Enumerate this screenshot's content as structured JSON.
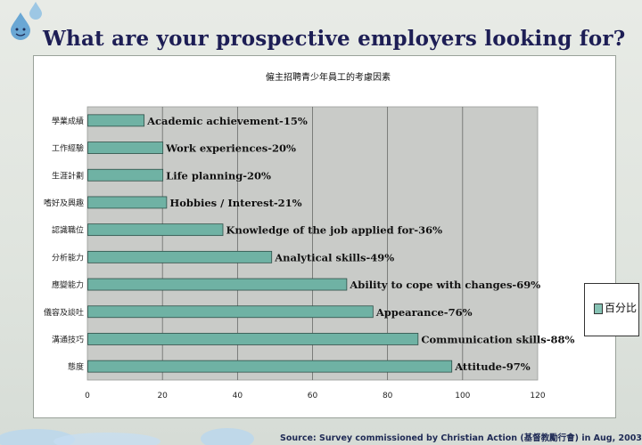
{
  "slide": {
    "title": "What are your prospective employers looking for?",
    "source": "Source: Survey commissioned by Christian Action (基督教勵行會) in Aug, 2003"
  },
  "colors": {
    "title": "#1d1e55",
    "bar_fill": "#6fb2a4",
    "plot_bg": "#c9cbc8",
    "legend_swatch": "#86c2b4"
  },
  "chart_data": {
    "type": "bar",
    "orientation": "horizontal",
    "title": "僱主招聘青少年員工的考慮因素",
    "categories": [
      "學業成績",
      "工作經驗",
      "生涯計劃",
      "嗜好及興趣",
      "認識職位",
      "分析能力",
      "應變能力",
      "儀容及談吐",
      "溝通技巧",
      "態度"
    ],
    "values": [
      15,
      20,
      20,
      21,
      36,
      49,
      69,
      76,
      88,
      97
    ],
    "data_labels": [
      "Academic achievement-15%",
      "Work experiences-20%",
      "Life planning-20%",
      "Hobbies / Interest-21%",
      "Knowledge of the job applied for-36%",
      "Analytical skills-49%",
      "Ability to cope with changes-69%",
      "Appearance-76%",
      "Communication skills-88%",
      "Attitude-97%"
    ],
    "xlim": [
      0,
      120
    ],
    "xticks": [
      0,
      20,
      40,
      60,
      80,
      100,
      120
    ],
    "grid": "vertical",
    "legend": {
      "label": "百分比",
      "placement": "right"
    }
  }
}
